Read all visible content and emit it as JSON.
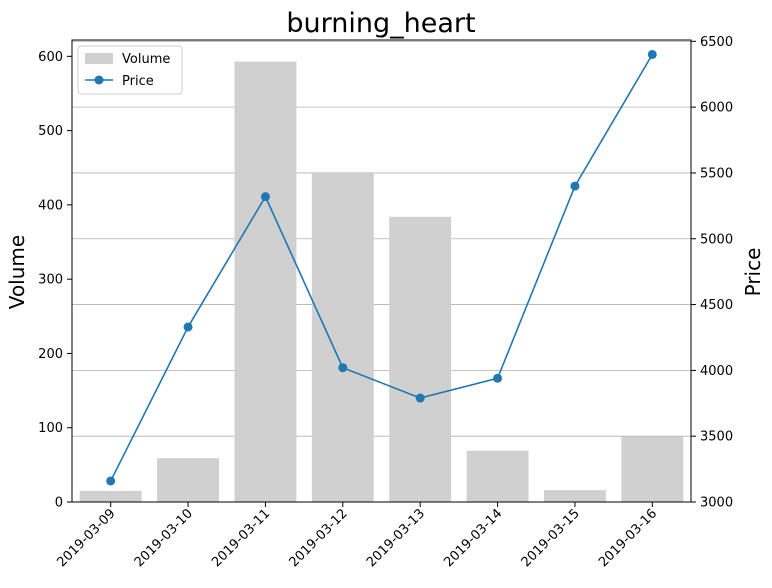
{
  "chart_data": {
    "type": "bar",
    "title": "burning_heart",
    "categories": [
      "2019-03-09",
      "2019-03-10",
      "2019-03-11",
      "2019-03-12",
      "2019-03-13",
      "2019-03-14",
      "2019-03-15",
      "2019-03-16"
    ],
    "series": [
      {
        "name": "Volume",
        "type": "bar",
        "axis": "left",
        "color": "#d0d0d0",
        "values": [
          15,
          59,
          593,
          443,
          384,
          69,
          16,
          88
        ]
      },
      {
        "name": "Price",
        "type": "line",
        "axis": "right",
        "color": "#1f77b4",
        "marker": "circle",
        "values": [
          3160,
          4330,
          5320,
          4020,
          3790,
          3940,
          5400,
          6400
        ]
      }
    ],
    "ylabel": "Volume",
    "y2label": "Price",
    "ylim": [
      0,
      622
    ],
    "y2lim": [
      3000,
      6510
    ],
    "yticks": [
      0,
      100,
      200,
      300,
      400,
      500,
      600
    ],
    "y2ticks": [
      3000,
      3500,
      4000,
      4500,
      5000,
      5500,
      6000,
      6500
    ],
    "grid": "horizontal (right axis)",
    "legend_position": "upper-left",
    "xtick_rotation": 45
  }
}
